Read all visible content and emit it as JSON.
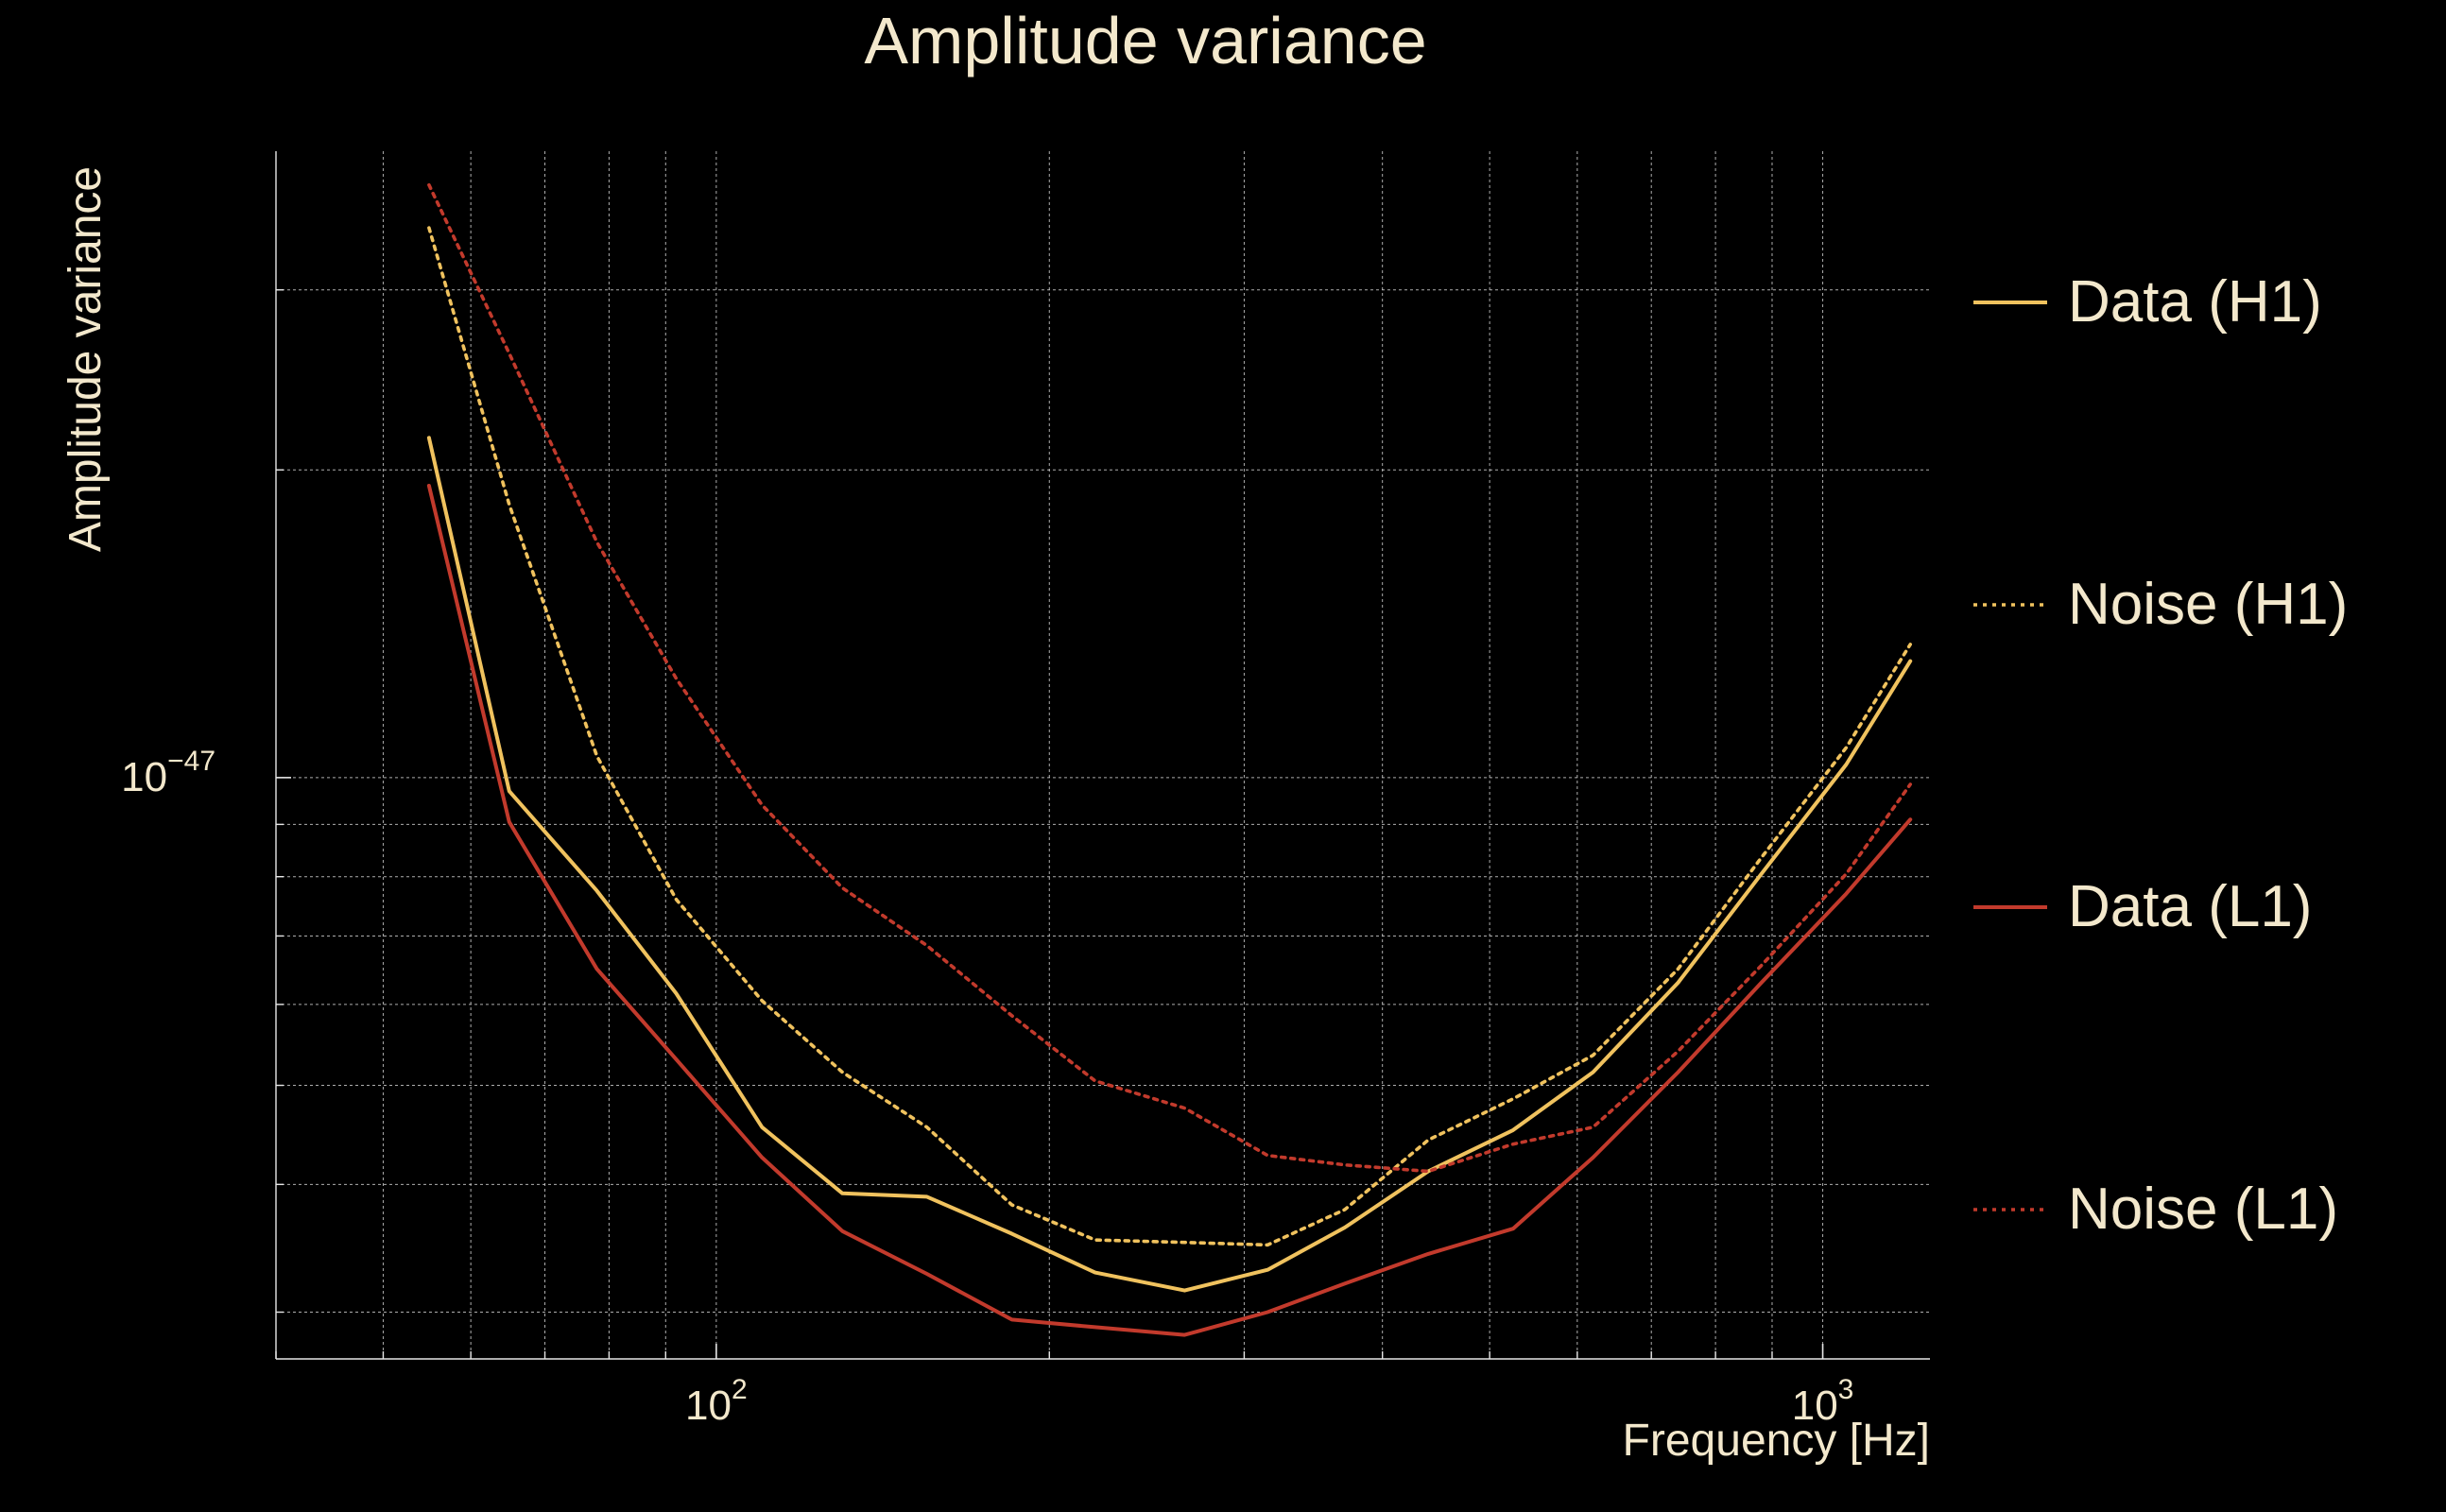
{
  "chart_data": {
    "type": "line",
    "title": "Amplitude variance",
    "xlabel": "Frequency [Hz]",
    "ylabel": "Amplitude variance",
    "x_scale": "log",
    "y_scale": "log",
    "xlim": [
      40,
      1250
    ],
    "ylim": [
      2.7e-48,
      4.1e-47
    ],
    "x_ticks": [
      {
        "value": 100,
        "base": "10",
        "exp": "2"
      },
      {
        "value": 1000,
        "base": "10",
        "exp": "3"
      }
    ],
    "y_ticks": [
      {
        "value": 1e-47,
        "base": "10",
        "exp": "−47"
      }
    ],
    "x_minor_grid": [
      40,
      50,
      60,
      70,
      80,
      90,
      200,
      300,
      400,
      500,
      600,
      700,
      800,
      900
    ],
    "y_minor_grid": [
      3e-48,
      4e-48,
      5e-48,
      6e-48,
      7e-48,
      8e-48,
      9e-48,
      2e-47,
      3e-47
    ],
    "grid": true,
    "legend_position": "right",
    "colors": {
      "h1": "#f0c25e",
      "l1": "#c23a2c",
      "text": "#f3e8cc",
      "background": "#000000"
    },
    "x": [
      55,
      65,
      78,
      92,
      110,
      130,
      155,
      185,
      220,
      265,
      315,
      370,
      440,
      525,
      620,
      740,
      880,
      1050,
      1200
    ],
    "series": [
      {
        "name": "Data (H1)",
        "style": "solid",
        "color": "#f0c25e",
        "values": [
          2.15e-47,
          9.7e-48,
          7.75e-48,
          6.15e-48,
          4.55e-48,
          3.92e-48,
          3.89e-48,
          3.58e-48,
          3.28e-48,
          3.15e-48,
          3.3e-48,
          3.63e-48,
          4.12e-48,
          4.52e-48,
          5.15e-48,
          6.3e-48,
          8.05e-48,
          1.03e-47,
          1.3e-47
        ]
      },
      {
        "name": "Noise (H1)",
        "style": "dotted",
        "color": "#f0c25e",
        "values": [
          3.45e-47,
          1.85e-47,
          1.05e-47,
          7.6e-48,
          6.05e-48,
          5.15e-48,
          4.55e-48,
          3.82e-48,
          3.53e-48,
          3.51e-48,
          3.49e-48,
          3.78e-48,
          4.42e-48,
          4.85e-48,
          5.35e-48,
          6.5e-48,
          8.35e-48,
          1.07e-47,
          1.35e-47
        ]
      },
      {
        "name": "Data (L1)",
        "style": "solid",
        "color": "#c23a2c",
        "values": [
          1.93e-47,
          9.05e-48,
          6.5e-48,
          5.3e-48,
          4.25e-48,
          3.6e-48,
          3.27e-48,
          2.95e-48,
          2.9e-48,
          2.85e-48,
          3e-48,
          3.2e-48,
          3.42e-48,
          3.62e-48,
          4.25e-48,
          5.15e-48,
          6.3e-48,
          7.7e-48,
          9.1e-48
        ]
      },
      {
        "name": "Noise (L1)",
        "style": "dotted",
        "color": "#c23a2c",
        "values": [
          3.8e-47,
          2.6e-47,
          1.7e-47,
          1.25e-47,
          9.4e-48,
          7.8e-48,
          6.85e-48,
          5.85e-48,
          5.05e-48,
          4.75e-48,
          4.27e-48,
          4.18e-48,
          4.12e-48,
          4.38e-48,
          4.55e-48,
          5.4e-48,
          6.55e-48,
          8.05e-48,
          9.85e-48
        ]
      }
    ]
  }
}
